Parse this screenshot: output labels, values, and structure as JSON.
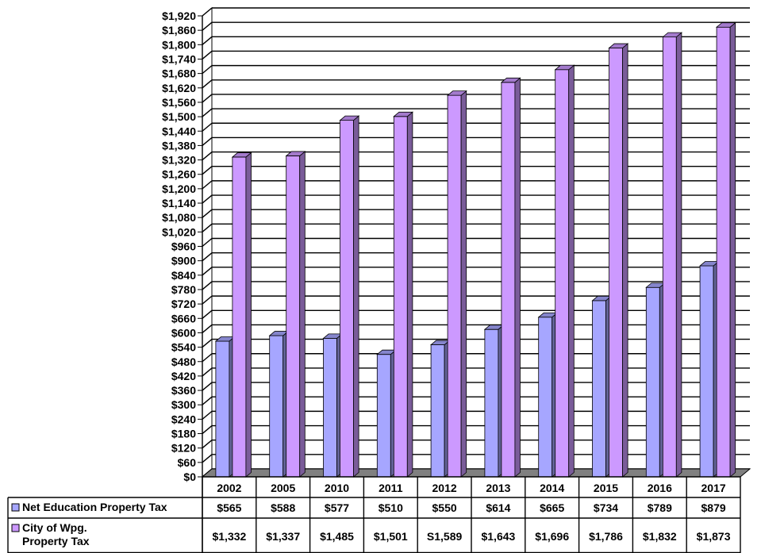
{
  "chart_data": {
    "type": "bar",
    "categories": [
      "2002",
      "2005",
      "2010",
      "2011",
      "2012",
      "2013",
      "2014",
      "2015",
      "2016",
      "2017"
    ],
    "series": [
      {
        "name": "Net Education Property Tax",
        "values": [
          565,
          588,
          577,
          510,
          550,
          614,
          665,
          734,
          789,
          879
        ],
        "labels": [
          "$565",
          "$588",
          "$577",
          "$510",
          "$550",
          "$614",
          "$665",
          "$734",
          "$789",
          "$879"
        ],
        "color": "#a6a6ff"
      },
      {
        "name_lines": [
          "City of Wpg.",
          "Property Tax"
        ],
        "values": [
          1332,
          1337,
          1485,
          1501,
          1589,
          1643,
          1696,
          1786,
          1832,
          1873
        ],
        "labels": [
          "$1,332",
          "$1,337",
          "$1,485",
          "$1,501",
          "S1,589",
          "$1,643",
          "$1,696",
          "$1,786",
          "$1,832",
          "$1,873"
        ],
        "color": "#cc99ff"
      }
    ],
    "ylim": [
      0,
      1920
    ],
    "ytick_step": 60,
    "ytick_format": "$#,###",
    "grid": true,
    "three_d": true,
    "data_table": true,
    "wall_color": "#ffffff",
    "floor_color": "#808080"
  }
}
